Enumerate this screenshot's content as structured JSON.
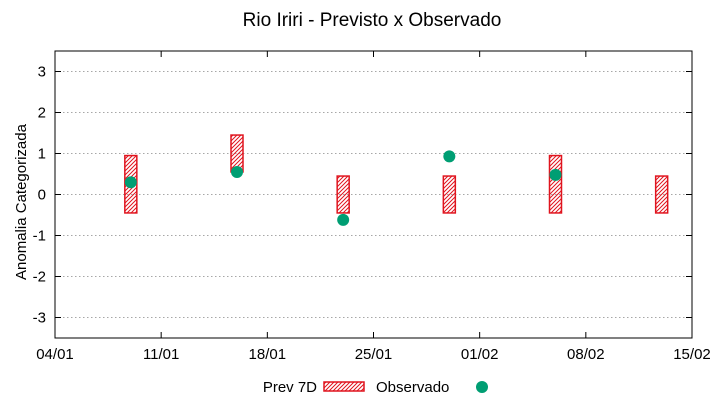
{
  "chart_data": {
    "type": "scatter",
    "title": "Rio Iriri - Previsto x Observado",
    "xlabel": "",
    "ylabel": "Anomalia Categorizada",
    "ylim": [
      -3.5,
      3.5
    ],
    "y_ticks": [
      -3,
      -2,
      -1,
      0,
      1,
      2,
      3
    ],
    "y_tick_labels": [
      "-3",
      "-2",
      "-1",
      "0",
      "1",
      "2",
      "3"
    ],
    "x_range_days": [
      0,
      42
    ],
    "x_ticks_days": [
      0,
      7,
      14,
      21,
      28,
      35,
      42
    ],
    "x_tick_labels": [
      "04/01",
      "11/01",
      "18/01",
      "25/01",
      "01/02",
      "08/02",
      "15/02"
    ],
    "grid": true,
    "legend_position": "bottom-center",
    "series": [
      {
        "name": "Prev 7D",
        "kind": "range-box",
        "color": "#e0141e",
        "points": [
          {
            "x": 5,
            "low": -0.45,
            "high": 0.95
          },
          {
            "x": 12,
            "low": 0.55,
            "high": 1.45
          },
          {
            "x": 19,
            "low": -0.45,
            "high": 0.45
          },
          {
            "x": 26,
            "low": -0.45,
            "high": 0.45
          },
          {
            "x": 33,
            "low": -0.45,
            "high": 0.95
          },
          {
            "x": 40,
            "low": -0.45,
            "high": 0.45
          }
        ]
      },
      {
        "name": "Observado",
        "kind": "point",
        "color": "#009e73",
        "points": [
          {
            "x": 5,
            "y": 0.3
          },
          {
            "x": 12,
            "y": 0.55
          },
          {
            "x": 19,
            "y": -0.62
          },
          {
            "x": 26,
            "y": 0.93
          },
          {
            "x": 33,
            "y": 0.48
          }
        ]
      }
    ]
  }
}
